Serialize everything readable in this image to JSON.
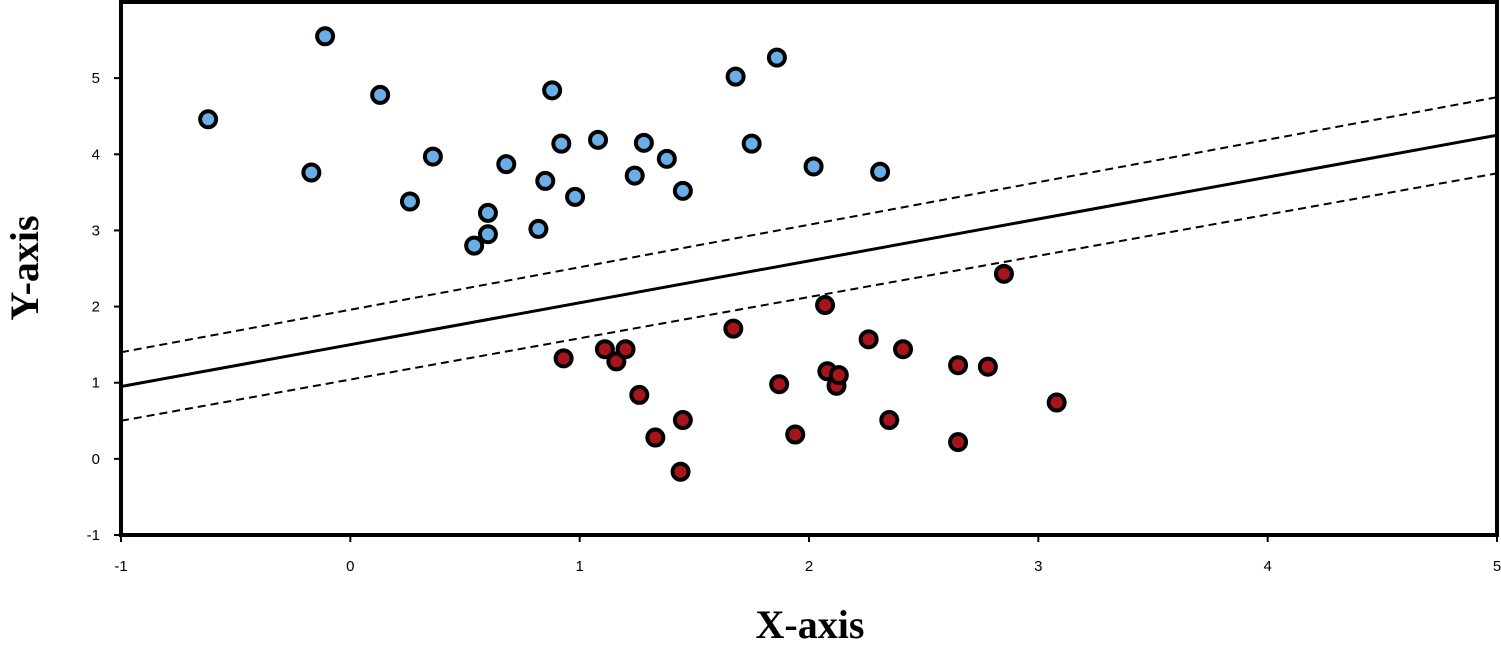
{
  "chart_data": {
    "type": "scatter",
    "title": "",
    "xlabel": "X-axis",
    "ylabel": "Y-axis",
    "xlim": [
      -1,
      5
    ],
    "ylim": [
      -1,
      6
    ],
    "grid": false,
    "x_ticks": [
      -1,
      0,
      1,
      2,
      3,
      4,
      5
    ],
    "y_ticks": [
      -1,
      0,
      1,
      2,
      3,
      4,
      5
    ],
    "series": [
      {
        "color": "#6aaee8",
        "points": [
          [
            -0.62,
            4.46
          ],
          [
            -0.11,
            5.55
          ],
          [
            -0.17,
            3.76
          ],
          [
            0.13,
            4.78
          ],
          [
            0.26,
            3.38
          ],
          [
            0.36,
            3.97
          ],
          [
            0.54,
            2.8
          ],
          [
            0.6,
            2.95
          ],
          [
            0.6,
            3.23
          ],
          [
            0.68,
            3.87
          ],
          [
            0.82,
            3.02
          ],
          [
            0.85,
            3.65
          ],
          [
            0.88,
            4.84
          ],
          [
            0.92,
            4.14
          ],
          [
            0.98,
            3.44
          ],
          [
            1.08,
            4.19
          ],
          [
            1.24,
            3.72
          ],
          [
            1.28,
            4.15
          ],
          [
            1.38,
            3.94
          ],
          [
            1.45,
            3.52
          ],
          [
            1.68,
            5.02
          ],
          [
            1.75,
            4.14
          ],
          [
            1.86,
            5.27
          ],
          [
            2.02,
            3.84
          ],
          [
            2.31,
            3.77
          ]
        ]
      },
      {
        "color": "#a8141c",
        "points": [
          [
            0.93,
            1.32
          ],
          [
            1.11,
            1.44
          ],
          [
            1.16,
            1.28
          ],
          [
            1.2,
            1.44
          ],
          [
            1.26,
            0.84
          ],
          [
            1.33,
            0.28
          ],
          [
            1.44,
            -0.17
          ],
          [
            1.45,
            0.51
          ],
          [
            1.67,
            1.71
          ],
          [
            1.87,
            0.98
          ],
          [
            1.94,
            0.32
          ],
          [
            2.07,
            2.02
          ],
          [
            2.08,
            1.15
          ],
          [
            2.12,
            0.96
          ],
          [
            2.13,
            1.1
          ],
          [
            2.26,
            1.57
          ],
          [
            2.35,
            0.51
          ],
          [
            2.41,
            1.44
          ],
          [
            2.65,
            1.23
          ],
          [
            2.65,
            0.22
          ],
          [
            2.78,
            1.21
          ],
          [
            2.85,
            2.43
          ],
          [
            3.08,
            0.74
          ]
        ]
      }
    ],
    "lines": [
      {
        "style": "solid",
        "from": [
          -1,
          0.95
        ],
        "to": [
          5,
          4.25
        ]
      },
      {
        "style": "dashed",
        "from": [
          -1,
          1.4
        ],
        "to": [
          5,
          4.75
        ]
      },
      {
        "style": "dashed",
        "from": [
          -1,
          0.5
        ],
        "to": [
          5,
          3.75
        ]
      }
    ]
  }
}
